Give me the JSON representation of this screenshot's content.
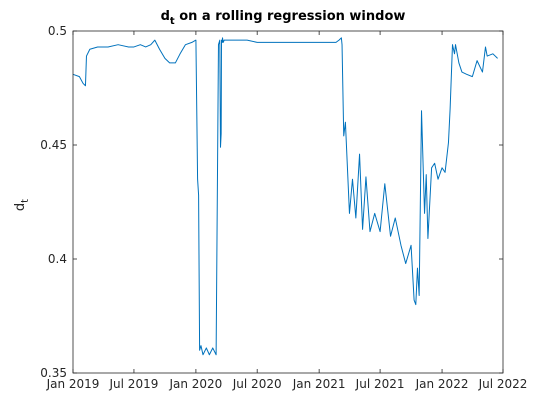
{
  "chart_data": {
    "type": "line",
    "title_main": "d",
    "title_sub": "t",
    "title_rest": " on a rolling regression window",
    "ylabel_main": "d",
    "ylabel_sub": "t",
    "xlabel": "",
    "xlim": [
      "2019-01-01",
      "2022-07-01"
    ],
    "ylim": [
      0.35,
      0.5
    ],
    "xticks": [
      {
        "date": "2019-01-01",
        "label": "Jan 2019"
      },
      {
        "date": "2019-07-01",
        "label": "Jul 2019"
      },
      {
        "date": "2020-01-01",
        "label": "Jan 2020"
      },
      {
        "date": "2020-07-01",
        "label": "Jul 2020"
      },
      {
        "date": "2021-01-01",
        "label": "Jan 2021"
      },
      {
        "date": "2021-07-01",
        "label": "Jul 2021"
      },
      {
        "date": "2022-01-01",
        "label": "Jan 2022"
      },
      {
        "date": "2022-07-01",
        "label": "Jul 2022"
      }
    ],
    "yticks": [
      {
        "value": 0.35,
        "label": "0.35"
      },
      {
        "value": 0.4,
        "label": "0.4"
      },
      {
        "value": 0.45,
        "label": "0.45"
      },
      {
        "value": 0.5,
        "label": "0.5"
      }
    ],
    "grid": false,
    "color": "#0072bd",
    "series": [
      {
        "x": [
          "2019-01-01",
          "2019-01-20",
          "2019-01-31",
          "2019-02-07",
          "2019-02-10",
          "2019-02-20",
          "2019-03-15",
          "2019-04-15",
          "2019-05-15",
          "2019-06-15",
          "2019-07-01",
          "2019-07-20",
          "2019-08-05",
          "2019-08-20",
          "2019-09-01",
          "2019-09-15",
          "2019-10-01",
          "2019-10-15",
          "2019-11-01",
          "2019-11-15",
          "2019-12-01",
          "2019-12-20",
          "2020-01-01",
          "2020-01-06",
          "2020-01-09",
          "2020-01-12",
          "2020-01-16",
          "2020-01-22",
          "2020-02-01",
          "2020-02-10",
          "2020-02-20",
          "2020-03-01",
          "2020-03-08",
          "2020-03-12",
          "2020-03-14",
          "2020-03-16",
          "2020-03-17",
          "2020-03-19",
          "2020-03-20",
          "2020-03-22",
          "2020-03-25",
          "2020-04-01",
          "2020-05-01",
          "2020-06-01",
          "2020-07-01",
          "2020-08-01",
          "2020-09-01",
          "2020-10-01",
          "2020-11-01",
          "2020-12-01",
          "2021-01-01",
          "2021-01-20",
          "2021-02-01",
          "2021-02-20",
          "2021-03-01",
          "2021-03-08",
          "2021-03-10",
          "2021-03-15",
          "2021-03-20",
          "2021-04-01",
          "2021-04-10",
          "2021-04-20",
          "2021-05-01",
          "2021-05-10",
          "2021-05-20",
          "2021-06-01",
          "2021-06-15",
          "2021-07-01",
          "2021-07-15",
          "2021-08-01",
          "2021-08-15",
          "2021-09-01",
          "2021-09-15",
          "2021-10-01",
          "2021-10-10",
          "2021-10-15",
          "2021-10-20",
          "2021-10-25",
          "2021-11-01",
          "2021-11-10",
          "2021-11-15",
          "2021-11-20",
          "2021-12-01",
          "2021-12-10",
          "2021-12-20",
          "2022-01-01",
          "2022-01-10",
          "2022-01-20",
          "2022-01-25",
          "2022-02-01",
          "2022-02-07",
          "2022-02-10",
          "2022-02-20",
          "2022-03-01",
          "2022-03-15",
          "2022-04-01",
          "2022-04-15",
          "2022-05-01",
          "2022-05-10",
          "2022-05-15",
          "2022-06-01",
          "2022-06-15"
        ],
        "y": [
          0.481,
          0.48,
          0.477,
          0.476,
          0.489,
          0.492,
          0.493,
          0.493,
          0.494,
          0.493,
          0.493,
          0.494,
          0.493,
          0.494,
          0.496,
          0.492,
          0.488,
          0.486,
          0.486,
          0.49,
          0.494,
          0.495,
          0.496,
          0.435,
          0.428,
          0.36,
          0.362,
          0.358,
          0.361,
          0.358,
          0.361,
          0.358,
          0.494,
          0.496,
          0.449,
          0.455,
          0.496,
          0.495,
          0.497,
          0.495,
          0.496,
          0.496,
          0.496,
          0.496,
          0.495,
          0.495,
          0.495,
          0.495,
          0.495,
          0.495,
          0.495,
          0.495,
          0.495,
          0.495,
          0.496,
          0.497,
          0.494,
          0.454,
          0.46,
          0.42,
          0.435,
          0.418,
          0.446,
          0.413,
          0.436,
          0.412,
          0.42,
          0.412,
          0.433,
          0.41,
          0.418,
          0.406,
          0.398,
          0.406,
          0.382,
          0.38,
          0.396,
          0.384,
          0.465,
          0.42,
          0.437,
          0.409,
          0.44,
          0.442,
          0.435,
          0.44,
          0.438,
          0.451,
          0.466,
          0.494,
          0.49,
          0.494,
          0.486,
          0.482,
          0.481,
          0.48,
          0.487,
          0.482,
          0.493,
          0.489,
          0.49,
          0.488
        ]
      }
    ]
  }
}
